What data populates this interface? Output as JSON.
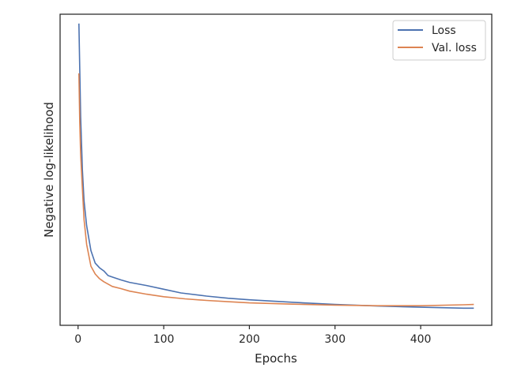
{
  "chart_data": {
    "type": "line",
    "title": "",
    "xlabel": "Epochs",
    "ylabel": "Negative log-likelihood",
    "xlim": [
      -21,
      483
    ],
    "ylim": [
      0,
      1.0
    ],
    "xticks": [
      0,
      100,
      200,
      300,
      400
    ],
    "yticks": [],
    "grid": false,
    "legend_position": "top-right",
    "series": [
      {
        "name": "Loss",
        "color": "#4c72b0",
        "x": [
          1,
          3,
          5,
          7,
          10,
          15,
          20,
          25,
          30,
          35,
          40,
          50,
          60,
          80,
          100,
          120,
          150,
          175,
          200,
          250,
          300,
          350,
          400,
          450,
          462
        ],
        "y": [
          0.97,
          0.67,
          0.5,
          0.4,
          0.32,
          0.24,
          0.2,
          0.185,
          0.175,
          0.16,
          0.155,
          0.146,
          0.138,
          0.128,
          0.116,
          0.104,
          0.094,
          0.087,
          0.082,
          0.074,
          0.067,
          0.062,
          0.058,
          0.055,
          0.055
        ]
      },
      {
        "name": "Val. loss",
        "color": "#dd8452",
        "x": [
          1,
          2,
          3,
          5,
          7,
          10,
          15,
          20,
          25,
          30,
          40,
          50,
          60,
          80,
          100,
          125,
          150,
          175,
          200,
          250,
          300,
          350,
          400,
          450,
          462
        ],
        "y": [
          0.81,
          0.65,
          0.55,
          0.44,
          0.34,
          0.26,
          0.19,
          0.165,
          0.15,
          0.14,
          0.125,
          0.118,
          0.11,
          0.1,
          0.092,
          0.085,
          0.08,
          0.076,
          0.072,
          0.068,
          0.065,
          0.063,
          0.063,
          0.066,
          0.067
        ]
      }
    ]
  }
}
